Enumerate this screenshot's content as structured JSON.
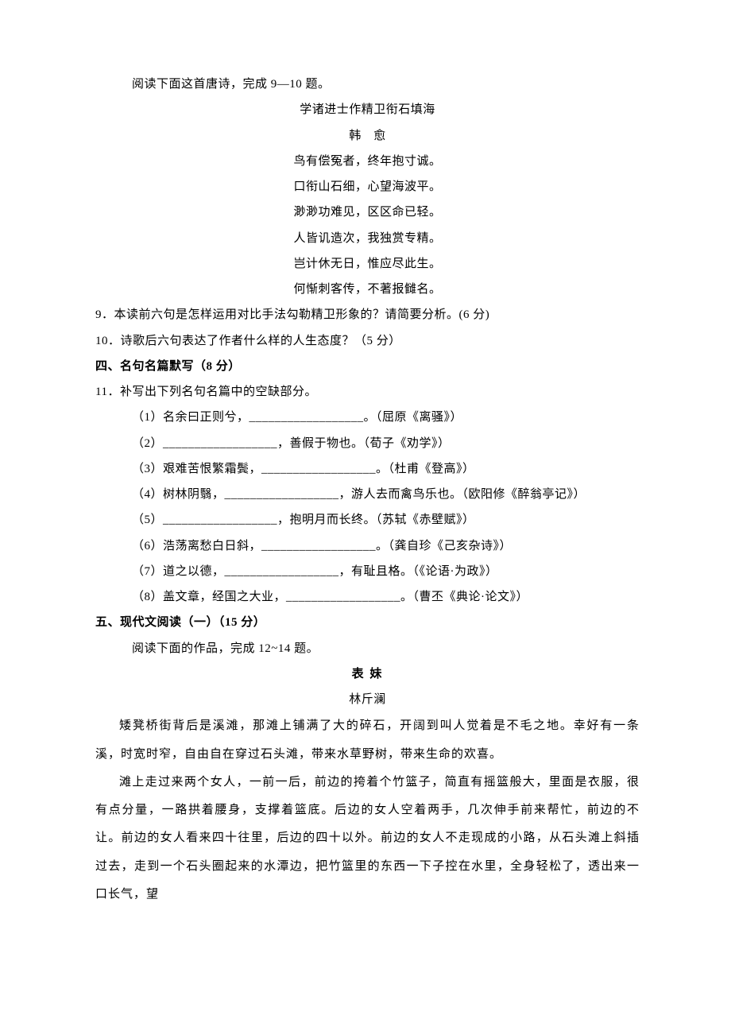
{
  "intro": "阅读下面这首唐诗，完成 9—10 题。",
  "poem": {
    "title": "学诸进士作精卫衔石填海",
    "author": "韩　愈",
    "lines": [
      "鸟有偿冤者，终年抱寸诚。",
      "口衔山石细，心望海波平。",
      "渺渺功难见，区区命已轻。",
      "人皆讥造次，我独赏专精。",
      "岂计休无日，惟应尽此生。",
      "何惭刺客传，不著报雠名。"
    ]
  },
  "q9": "9．本读前六句是怎样运用对比手法勾勒精卫形象的？请简要分析。(6 分)",
  "q10": "10．诗歌后六句表达了作者什么样的人生态度？（5 分）",
  "section4": "四、名句名篇默写（8 分）",
  "q11": {
    "stem": "11．补写出下列名句名篇中的空缺部分。",
    "items": [
      "（1）名余曰正则兮，__________________。（屈原《离骚》）",
      "（2）__________________，善假于物也。（荀子《劝学》）",
      "（3）艰难苦恨繁霜鬓，__________________。（杜甫《登高》）",
      "（4）树林阴翳，__________________，游人去而禽鸟乐也。（欧阳修《醉翁亭记》）",
      "（5）__________________，抱明月而长终。（苏轼《赤壁赋》）",
      "（6）浩荡离愁白日斜，__________________。（龚自珍《己亥杂诗》）",
      "（7）道之以德，__________________，有耻且格。（《论语·为政》）",
      "（8）盖文章，经国之大业，__________________。（曹丕《典论·论文》）"
    ]
  },
  "section5": "五、现代文阅读（一）（15 分）",
  "reading_intro": "阅读下面的作品，完成 12~14 题。",
  "story": {
    "title": "表 妹",
    "author": "林斤澜",
    "paras": [
      "矮凳桥街背后是溪滩，那滩上铺满了大的碎石，开阔到叫人觉着是不毛之地。幸好有一条溪，时宽时窄，自由自在穿过石头滩，带来水草野树，带来生命的欢喜。",
      "滩上走过来两个女人，一前一后，前边的挎着个竹篮子，简直有摇篮般大，里面是衣服，很有点分量，一路拱着腰身，支撑着篮底。后边的女人空着两手，几次伸手前来帮忙，前边的不让。前边的女人看来四十往里，后边的四十以外。前边的女人不走现成的小路，从石头滩上斜插过去，走到一个石头圈起来的水潭边，把竹篮里的东西一下子控在水里，全身轻松了，透出来一口长气，望"
    ]
  }
}
